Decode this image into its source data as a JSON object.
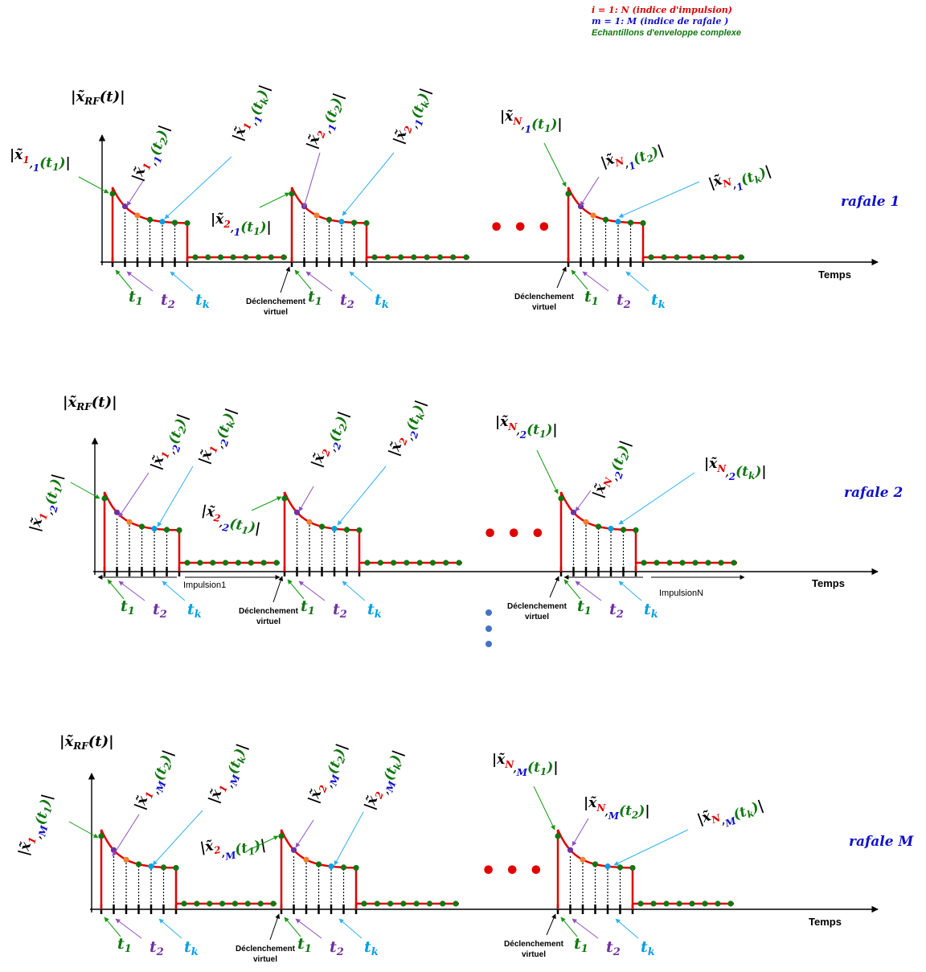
{
  "legend": {
    "line1": "i = 1: N (indice d'impulsion)",
    "line2": "m = 1: M (indice de rafale )",
    "line3": "Echantillons d'enveloppe complexe"
  },
  "common": {
    "y_label": "|x̃",
    "y_label_sub": "RF",
    "y_label_arg": "(t)|",
    "x_axis_label": "Temps",
    "trigger_label_1": "Déclenchement",
    "trigger_label_2": "virtuel",
    "ellipsis": "• • •",
    "t1": "t",
    "t1_sub": "1",
    "t2": "t",
    "t2_sub": "2",
    "tk": "t",
    "tk_sub": "k",
    "pulse1_label": "Impulsion1",
    "pulseN_label": "ImpulsionN"
  },
  "bursts": [
    {
      "burst_label": "rafale 1",
      "m": "1",
      "labels": {
        "p1_t1": [
          "1",
          "1",
          "1"
        ],
        "p1_t2": [
          "1",
          "1",
          "2"
        ],
        "p1_tk": [
          "1",
          "1",
          "k"
        ],
        "p2_t1": [
          "2",
          "1",
          "1"
        ],
        "p2_t2": [
          "2",
          "1",
          "2"
        ],
        "p2_tk": [
          "2",
          "1",
          "k"
        ],
        "pN_t1": [
          "N",
          "1",
          "1"
        ],
        "pN_t2": [
          "N",
          "1",
          "2"
        ],
        "pN_tk": [
          "N",
          "1",
          "k"
        ]
      }
    },
    {
      "burst_label": "rafale 2",
      "m": "2",
      "labels": {
        "p1_t1": [
          "1",
          "2",
          "1"
        ],
        "p1_t2": [
          "1",
          "2",
          "2"
        ],
        "p1_tk": [
          "1",
          "2",
          "k"
        ],
        "p2_t1": [
          "2",
          "2",
          "1"
        ],
        "p2_t2": [
          "2",
          "2",
          "2"
        ],
        "p2_tk": [
          "2",
          "2",
          "k"
        ],
        "pN_t1": [
          "N",
          "2",
          "1"
        ],
        "pN_t2": [
          "N",
          "2",
          "2"
        ],
        "pN_tk": [
          "N",
          "2",
          "k"
        ]
      }
    },
    {
      "burst_label": "rafale M",
      "m": "M",
      "labels": {
        "p1_t1": [
          "1",
          "M",
          "1"
        ],
        "p1_t2": [
          "1",
          "M",
          "2"
        ],
        "p1_tk": [
          "1",
          "M",
          "k"
        ],
        "p2_t1": [
          "2",
          "M",
          "1"
        ],
        "p2_t2": [
          "2",
          "M",
          "2"
        ],
        "p2_tk": [
          "2",
          "M",
          "k"
        ],
        "pN_t1": [
          "N",
          "M",
          "1"
        ],
        "pN_t2": [
          "N",
          "M",
          "2"
        ],
        "pN_tk": [
          "N",
          "M",
          "k"
        ]
      }
    }
  ],
  "colors": {
    "red": "#e00000",
    "blue": "#1010cc",
    "green": "#117711",
    "purple": "#7030a0",
    "orange": "#f08030",
    "cyan": "#00a0e0",
    "arrow_green": "#119911",
    "arrow_purple": "#9050c0",
    "arrow_cyan": "#30b0f0",
    "mid_dots": "#4472c4"
  }
}
